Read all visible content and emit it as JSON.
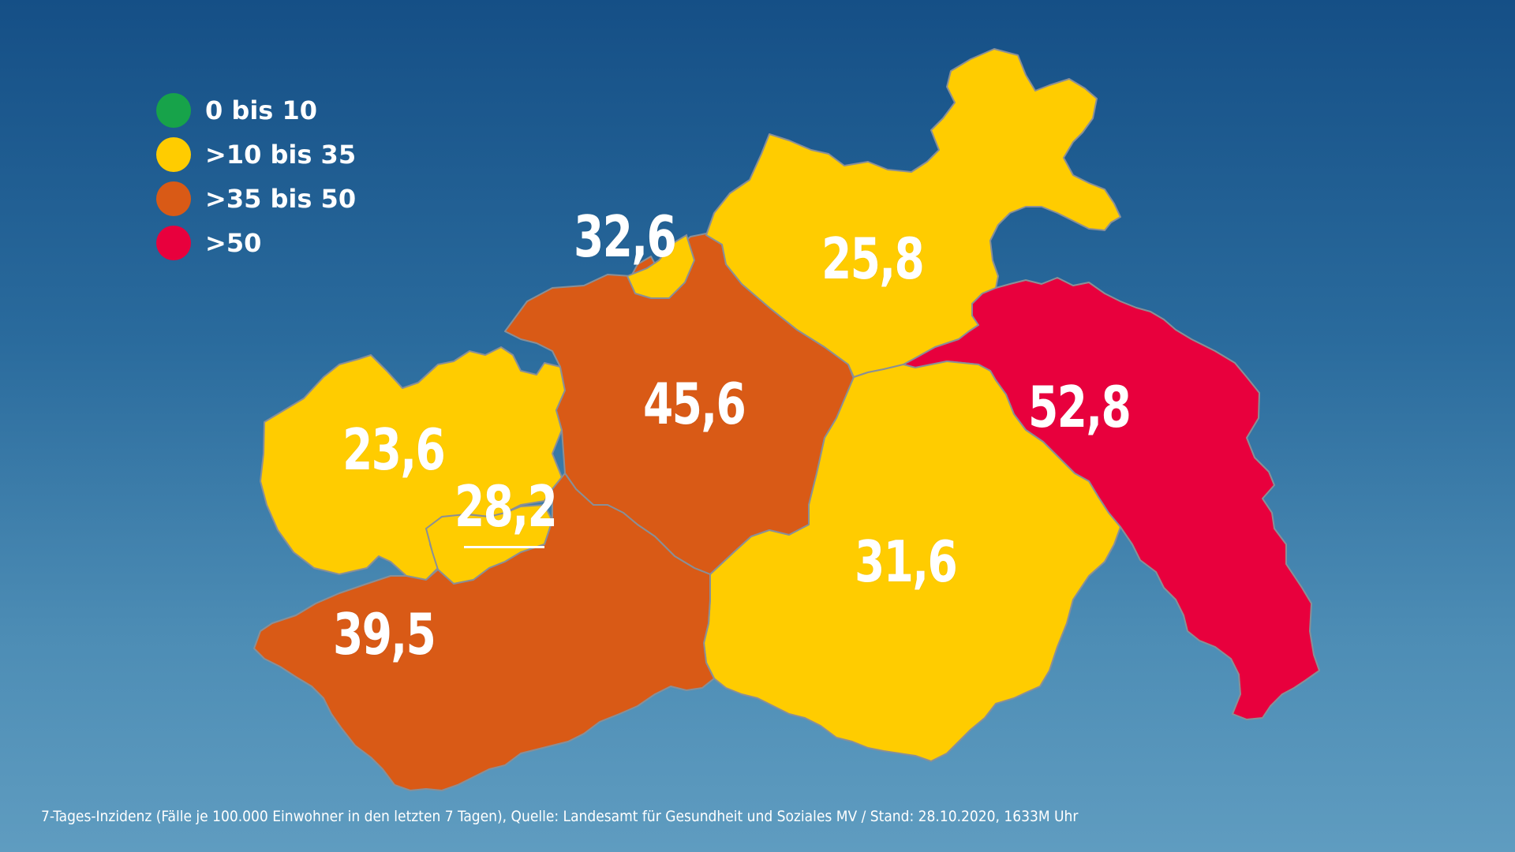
{
  "legend": [
    {
      "label": "0 bis 10",
      "color": "#17a34a"
    },
    {
      "label": ">10 bis 35",
      "color": "#ffcc00"
    },
    {
      "label": ">35 bis 50",
      "color": "#d95a16"
    },
    {
      "label": ">50",
      "color": "#e8003d"
    }
  ],
  "regions": [
    {
      "value": "32,6",
      "color": "#ffcc00"
    },
    {
      "value": "25,8",
      "color": "#ffcc00"
    },
    {
      "value": "45,6",
      "color": "#d95a16"
    },
    {
      "value": "52,8",
      "color": "#e8003d"
    },
    {
      "value": "23,6",
      "color": "#ffcc00"
    },
    {
      "value": "28,2",
      "color": "#ffcc00"
    },
    {
      "value": "31,6",
      "color": "#ffcc00"
    },
    {
      "value": "39,5",
      "color": "#d95a16"
    }
  ],
  "source_note": "7-Tages-Inzidenz (Fälle je 100.000 Einwohner in den letzten 7 Tagen), Quelle: Landesamt für Gesundheit und Soziales MV / Stand: 28.10.2020, 1633M Uhr"
}
